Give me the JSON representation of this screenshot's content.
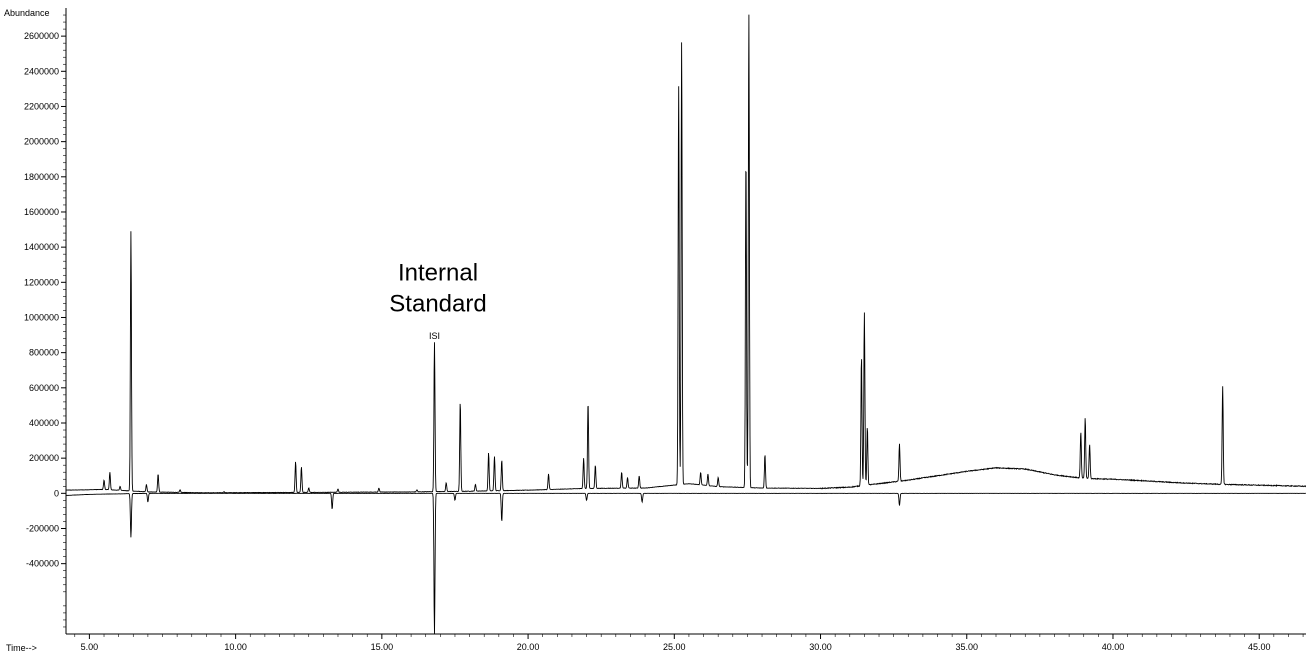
{
  "chart_data": {
    "type": "line",
    "ylabel": "Abundance",
    "xlabel": "Time-->",
    "xlim": [
      4.2,
      46.6
    ],
    "ylim": [
      -800000,
      2760000
    ],
    "x_ticks": [
      5,
      10,
      15,
      20,
      25,
      30,
      35,
      40,
      45
    ],
    "x_tick_labels": [
      "5.00",
      "10.00",
      "15.00",
      "20.00",
      "25.00",
      "30.00",
      "35.00",
      "40.00",
      "45.00"
    ],
    "y_ticks": [
      -400000,
      -200000,
      0,
      200000,
      400000,
      600000,
      800000,
      1000000,
      1200000,
      1400000,
      1600000,
      1800000,
      2000000,
      2200000,
      2400000,
      2600000
    ],
    "y_tick_labels": [
      "-400000",
      "-200000",
      "0",
      "200000",
      "400000",
      "600000",
      "800000",
      "1000000",
      "1200000",
      "1400000",
      "1600000",
      "1800000",
      "2000000",
      "2200000",
      "2400000",
      "2600000"
    ],
    "annotations": [
      {
        "text_lines": [
          "Internal",
          "Standard"
        ],
        "x": 16.8,
        "y": 1200000
      },
      {
        "text": "ISI",
        "x": 16.8,
        "y": 900000
      }
    ],
    "series": [
      {
        "trace": "upper",
        "baseline": [
          [
            4.2,
            18000
          ],
          [
            5.5,
            22000
          ],
          [
            7,
            8000
          ],
          [
            9,
            3000
          ],
          [
            12,
            5000
          ],
          [
            16,
            8000
          ],
          [
            18,
            12000
          ],
          [
            20,
            18000
          ],
          [
            22,
            28000
          ],
          [
            24,
            30000
          ],
          [
            25.5,
            55000
          ],
          [
            26.5,
            38000
          ],
          [
            28,
            30000
          ],
          [
            30,
            28000
          ],
          [
            31,
            35000
          ],
          [
            32,
            55000
          ],
          [
            33,
            75000
          ],
          [
            34,
            100000
          ],
          [
            35,
            125000
          ],
          [
            36,
            145000
          ],
          [
            37,
            138000
          ],
          [
            38,
            105000
          ],
          [
            39,
            85000
          ],
          [
            40,
            80000
          ],
          [
            41,
            72000
          ],
          [
            42,
            62000
          ],
          [
            43,
            55000
          ],
          [
            44,
            50000
          ],
          [
            46.6,
            40000
          ]
        ],
        "peaks": [
          [
            5.5,
            75000
          ],
          [
            5.7,
            120000
          ],
          [
            6.05,
            40000
          ],
          [
            6.42,
            1490000
          ],
          [
            6.95,
            50000
          ],
          [
            7.35,
            110000
          ],
          [
            8.1,
            20000
          ],
          [
            9.6,
            10000
          ],
          [
            12.05,
            180000
          ],
          [
            12.25,
            150000
          ],
          [
            12.5,
            30000
          ],
          [
            13.5,
            25000
          ],
          [
            14.9,
            30000
          ],
          [
            16.2,
            20000
          ],
          [
            16.8,
            860000
          ],
          [
            17.2,
            60000
          ],
          [
            17.68,
            520000
          ],
          [
            18.2,
            50000
          ],
          [
            18.65,
            230000
          ],
          [
            18.85,
            210000
          ],
          [
            19.1,
            190000
          ],
          [
            20.7,
            110000
          ],
          [
            21.9,
            200000
          ],
          [
            22.05,
            520000
          ],
          [
            22.3,
            160000
          ],
          [
            23.2,
            120000
          ],
          [
            23.4,
            90000
          ],
          [
            23.8,
            100000
          ],
          [
            25.15,
            2330000
          ],
          [
            25.25,
            2580000
          ],
          [
            25.9,
            120000
          ],
          [
            26.15,
            110000
          ],
          [
            26.5,
            90000
          ],
          [
            27.45,
            1930000
          ],
          [
            27.55,
            2740000
          ],
          [
            28.1,
            220000
          ],
          [
            31.4,
            780000
          ],
          [
            31.5,
            1030000
          ],
          [
            31.6,
            380000
          ],
          [
            32.7,
            280000
          ],
          [
            38.9,
            350000
          ],
          [
            39.05,
            430000
          ],
          [
            39.2,
            280000
          ],
          [
            43.75,
            610000
          ]
        ]
      },
      {
        "trace": "lower",
        "baseline": [
          [
            4.2,
            -12000
          ],
          [
            5,
            -6000
          ],
          [
            7,
            0
          ],
          [
            46.6,
            0
          ]
        ],
        "peaks": [
          [
            6.42,
            -250000
          ],
          [
            7.0,
            -50000
          ],
          [
            13.3,
            -90000
          ],
          [
            16.8,
            -800000
          ],
          [
            17.5,
            -40000
          ],
          [
            19.1,
            -160000
          ],
          [
            22.0,
            -40000
          ],
          [
            23.9,
            -50000
          ],
          [
            32.7,
            -70000
          ]
        ]
      }
    ]
  }
}
